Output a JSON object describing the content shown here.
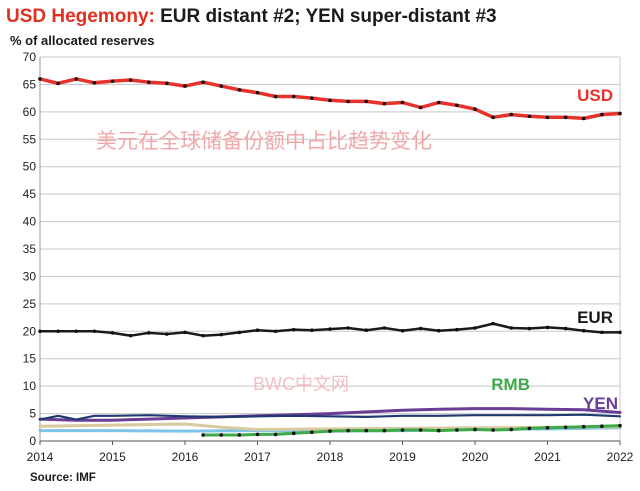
{
  "header": {
    "title_main": "USD Hegemony",
    "title_colon": ":",
    "title_rest": " EUR distant #2; YEN super-distant  #3",
    "subtitle": "% of allocated reserves"
  },
  "footer": {
    "source": "Source: IMF"
  },
  "overlay": {
    "chinese_caption": "美元在全球储备份额中占比趋势变化",
    "watermark": "BWC中文网"
  },
  "colors": {
    "usd": "#e8312a",
    "eur": "#1a1a1a",
    "rmb": "#3faa4a",
    "yen": "#6a3d96",
    "gbp": "#1f3a6e",
    "other_light": "#7ec3e8",
    "other_tan": "#d8caa0",
    "grid": "#c8c8c8"
  },
  "chart_data": {
    "type": "line",
    "title": "USD Hegemony: EUR distant #2; YEN super-distant  #3",
    "ylabel": "% of allocated reserves",
    "xlim": [
      2014,
      2022
    ],
    "ylim": [
      0,
      70
    ],
    "y_ticks": [
      0,
      5,
      10,
      15,
      20,
      25,
      30,
      35,
      40,
      45,
      50,
      55,
      60,
      65,
      70
    ],
    "x_ticks": [
      2014,
      2015,
      2016,
      2017,
      2018,
      2019,
      2020,
      2021,
      2022
    ],
    "grid": true,
    "series": [
      {
        "name": "USD",
        "key": "usd",
        "labeled": true,
        "x": [
          2014,
          2014.25,
          2014.5,
          2014.75,
          2015,
          2015.25,
          2015.5,
          2015.75,
          2016,
          2016.25,
          2016.5,
          2016.75,
          2017,
          2017.25,
          2017.5,
          2017.75,
          2018,
          2018.25,
          2018.5,
          2018.75,
          2019,
          2019.25,
          2019.5,
          2019.75,
          2020,
          2020.25,
          2020.5,
          2020.75,
          2021,
          2021.25,
          2021.5,
          2021.75,
          2022
        ],
        "values": [
          66,
          65.2,
          66,
          65.3,
          65.6,
          65.8,
          65.4,
          65.2,
          64.7,
          65.4,
          64.7,
          64,
          63.5,
          62.8,
          62.8,
          62.5,
          62.1,
          61.9,
          61.9,
          61.5,
          61.7,
          60.8,
          61.7,
          61.2,
          60.5,
          59,
          59.5,
          59.2,
          59,
          59,
          58.8,
          59.5,
          59.7
        ]
      },
      {
        "name": "EUR",
        "key": "eur",
        "labeled": true,
        "x": [
          2014,
          2014.25,
          2014.5,
          2014.75,
          2015,
          2015.25,
          2015.5,
          2015.75,
          2016,
          2016.25,
          2016.5,
          2016.75,
          2017,
          2017.25,
          2017.5,
          2017.75,
          2018,
          2018.25,
          2018.5,
          2018.75,
          2019,
          2019.25,
          2019.5,
          2019.75,
          2020,
          2020.25,
          2020.5,
          2020.75,
          2021,
          2021.25,
          2021.5,
          2021.75,
          2022
        ],
        "values": [
          20,
          20,
          20,
          20,
          19.7,
          19.2,
          19.7,
          19.5,
          19.8,
          19.2,
          19.4,
          19.8,
          20.2,
          20,
          20.3,
          20.2,
          20.4,
          20.6,
          20.2,
          20.6,
          20.1,
          20.5,
          20.1,
          20.3,
          20.6,
          21.4,
          20.6,
          20.5,
          20.7,
          20.5,
          20.1,
          19.8,
          19.8
        ]
      },
      {
        "name": "YEN",
        "key": "yen",
        "labeled": true,
        "x": [
          2014,
          2014.5,
          2015,
          2015.5,
          2016,
          2016.5,
          2017,
          2017.5,
          2018,
          2018.5,
          2019,
          2019.5,
          2020,
          2020.5,
          2021,
          2021.5,
          2022
        ],
        "values": [
          4,
          3.8,
          3.8,
          4,
          4.2,
          4.4,
          4.6,
          4.8,
          5,
          5.3,
          5.6,
          5.8,
          5.9,
          5.9,
          5.8,
          5.7,
          5.2
        ]
      },
      {
        "name": "RMB",
        "key": "rmb",
        "labeled": true,
        "x": [
          2016.25,
          2016.5,
          2016.75,
          2017,
          2017.25,
          2017.5,
          2017.75,
          2018,
          2018.25,
          2018.5,
          2018.75,
          2019,
          2019.25,
          2019.5,
          2019.75,
          2020,
          2020.25,
          2020.5,
          2020.75,
          2021,
          2021.25,
          2021.5,
          2021.75,
          2022
        ],
        "values": [
          1.1,
          1.1,
          1.1,
          1.2,
          1.2,
          1.4,
          1.6,
          1.8,
          1.9,
          1.9,
          1.9,
          2,
          2,
          1.9,
          2,
          2.1,
          2,
          2.1,
          2.3,
          2.4,
          2.5,
          2.6,
          2.7,
          2.8
        ]
      },
      {
        "name": "",
        "key": "gbp",
        "labeled": false,
        "x": [
          2014,
          2014.25,
          2014.5,
          2014.75,
          2015,
          2015.5,
          2016,
          2016.5,
          2017,
          2017.5,
          2018,
          2018.5,
          2019,
          2019.5,
          2020,
          2020.5,
          2021,
          2021.5,
          2022
        ],
        "values": [
          3.9,
          4.6,
          3.9,
          4.6,
          4.6,
          4.7,
          4.5,
          4.4,
          4.5,
          4.6,
          4.5,
          4.4,
          4.6,
          4.6,
          4.7,
          4.7,
          4.7,
          4.8,
          4.5
        ]
      },
      {
        "name": "",
        "key": "other_tan",
        "labeled": false,
        "x": [
          2014,
          2015,
          2016,
          2016.5,
          2017,
          2018,
          2019,
          2020,
          2021,
          2022
        ],
        "values": [
          2.7,
          2.9,
          3.1,
          2.5,
          2.1,
          2.2,
          2.3,
          2.4,
          2.5,
          2.6
        ]
      },
      {
        "name": "",
        "key": "other_light",
        "labeled": false,
        "x": [
          2014,
          2015,
          2016,
          2017,
          2018,
          2019,
          2020,
          2021,
          2022
        ],
        "values": [
          1.9,
          1.9,
          1.8,
          1.9,
          1.8,
          1.9,
          2.1,
          2.2,
          2.4
        ]
      }
    ]
  }
}
